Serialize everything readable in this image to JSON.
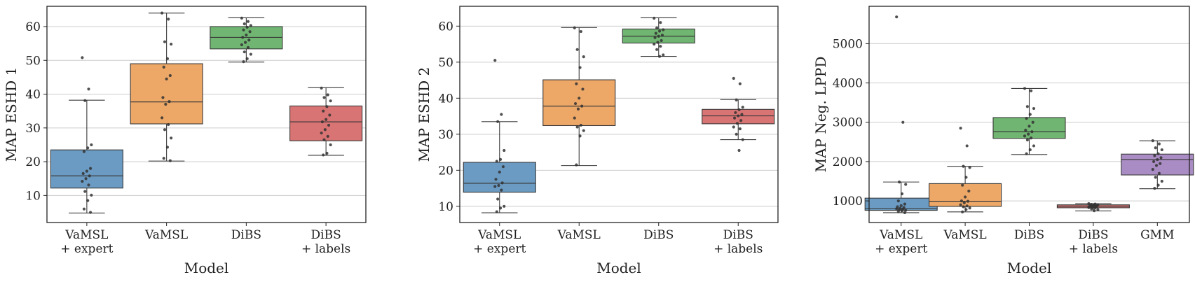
{
  "chart_data": [
    {
      "type": "box",
      "ylabel": "MAP ESHD 1",
      "xlabel": "Model",
      "ylim": [
        2,
        66
      ],
      "yticks": [
        10,
        20,
        30,
        40,
        50,
        60
      ],
      "grid": "horizontal",
      "boxes": [
        {
          "label": [
            "VaMSL",
            "+ expert"
          ],
          "color": "#6b9bc3",
          "q1": 12.2,
          "median": 15.8,
          "q3": 23.5,
          "whisker_low": 4.8,
          "whisker_high": 38.2,
          "points": [
            50.8,
            41.5,
            38.1,
            25.0,
            24.1,
            23.0,
            18.0,
            17.2,
            16.5,
            15.8,
            15.0,
            14.2,
            13.1,
            11.2,
            10.1,
            8.5,
            6.0,
            5.0
          ]
        },
        {
          "label": [
            "VaMSL"
          ],
          "color": "#eda868",
          "q1": 31.2,
          "median": 37.7,
          "q3": 49.0,
          "whisker_low": 20.2,
          "whisker_high": 64.0,
          "points": [
            64.0,
            62.2,
            55.5,
            54.8,
            50.5,
            48.0,
            45.5,
            44.5,
            39.0,
            37.8,
            37.0,
            33.0,
            31.0,
            29.5,
            27.0,
            24.3,
            21.0,
            20.3
          ]
        },
        {
          "label": [
            "DiBS"
          ],
          "color": "#70b672",
          "q1": 53.4,
          "median": 56.8,
          "q3": 60.0,
          "whisker_low": 49.5,
          "whisker_high": 62.6,
          "points": [
            62.5,
            61.5,
            60.8,
            60.3,
            59.8,
            59.0,
            58.5,
            57.5,
            56.8,
            56.0,
            55.3,
            54.6,
            53.8,
            52.5,
            51.8,
            50.5,
            49.6
          ]
        },
        {
          "label": [
            "DiBS",
            "+ labels"
          ],
          "color": "#d97474",
          "q1": 26.2,
          "median": 31.8,
          "q3": 36.5,
          "whisker_low": 21.9,
          "whisker_high": 41.9,
          "points": [
            41.8,
            39.8,
            39.0,
            38.0,
            36.3,
            35.0,
            33.8,
            32.5,
            31.8,
            30.8,
            29.5,
            28.5,
            27.5,
            26.5,
            25.0,
            22.5,
            22.0
          ]
        }
      ]
    },
    {
      "type": "box",
      "ylabel": "MAP ESHD 2",
      "xlabel": "Model",
      "ylim": [
        5.5,
        65.5
      ],
      "yticks": [
        10,
        20,
        30,
        40,
        50,
        60
      ],
      "grid": "horizontal",
      "boxes": [
        {
          "label": [
            "VaMSL",
            "+ expert"
          ],
          "color": "#6b9bc3",
          "q1": 13.9,
          "median": 16.4,
          "q3": 22.2,
          "whisker_low": 8.2,
          "whisker_high": 33.5,
          "points": [
            50.5,
            35.5,
            33.5,
            25.5,
            23.0,
            22.5,
            21.0,
            19.5,
            17.5,
            16.5,
            15.8,
            15.5,
            14.5,
            12.0,
            10.0,
            9.5,
            8.5
          ]
        },
        {
          "label": [
            "VaMSL"
          ],
          "color": "#eda868",
          "q1": 32.4,
          "median": 37.8,
          "q3": 45.1,
          "whisker_low": 21.3,
          "whisker_high": 59.6,
          "points": [
            59.5,
            58.5,
            53.5,
            51.5,
            48.5,
            44.0,
            42.5,
            40.0,
            38.5,
            37.8,
            37.0,
            34.5,
            32.5,
            32.0,
            31.0,
            29.5,
            21.5
          ]
        },
        {
          "label": [
            "DiBS"
          ],
          "color": "#70b672",
          "q1": 55.3,
          "median": 57.2,
          "q3": 59.2,
          "whisker_low": 51.6,
          "whisker_high": 62.3,
          "points": [
            62.2,
            61.0,
            59.5,
            59.0,
            58.6,
            58.0,
            57.5,
            57.2,
            56.8,
            56.0,
            55.5,
            55.0,
            54.4,
            53.5,
            52.0,
            51.6
          ]
        },
        {
          "label": [
            "DiBS",
            "+ labels"
          ],
          "color": "#d97474",
          "q1": 32.9,
          "median": 35.1,
          "q3": 36.9,
          "whisker_low": 28.5,
          "whisker_high": 39.6,
          "points": [
            45.5,
            44.0,
            39.5,
            37.5,
            36.8,
            36.0,
            35.5,
            35.1,
            34.5,
            33.8,
            33.0,
            32.0,
            31.5,
            30.0,
            28.5,
            25.5
          ]
        }
      ]
    },
    {
      "type": "box",
      "ylabel": "MAP Neg. LPPD",
      "xlabel": "Model",
      "ylim": [
        450,
        5950
      ],
      "yticks": [
        1000,
        2000,
        3000,
        4000,
        5000
      ],
      "grid": "horizontal",
      "boxes": [
        {
          "label": [
            "VaMSL",
            "+ expert"
          ],
          "color": "#6b9bc3",
          "q1": 760,
          "median": 800,
          "q3": 1070,
          "whisker_low": 700,
          "whisker_high": 1480,
          "points": [
            5680,
            3000,
            1480,
            1420,
            1180,
            1000,
            920,
            880,
            850,
            830,
            810,
            800,
            790,
            780,
            760,
            750,
            730,
            700
          ]
        },
        {
          "label": [
            "VaMSL"
          ],
          "color": "#eda868",
          "q1": 860,
          "median": 990,
          "q3": 1440,
          "whisker_low": 720,
          "whisker_high": 1880,
          "points": [
            2850,
            2400,
            1880,
            1850,
            1600,
            1400,
            1250,
            1100,
            1000,
            990,
            950,
            900,
            870,
            850,
            820,
            780,
            720
          ]
        },
        {
          "label": [
            "DiBS"
          ],
          "color": "#70b672",
          "q1": 2590,
          "median": 2760,
          "q3": 3120,
          "whisker_low": 2180,
          "whisker_high": 3860,
          "points": [
            3860,
            3800,
            3400,
            3350,
            3200,
            3100,
            3000,
            2900,
            2800,
            2760,
            2700,
            2650,
            2600,
            2550,
            2400,
            2300,
            2200
          ]
        },
        {
          "label": [
            "DiBS",
            "+ labels"
          ],
          "color": "#d97474",
          "q1": 825,
          "median": 865,
          "q3": 900,
          "whisker_low": 745,
          "whisker_high": 930,
          "points": [
            930,
            920,
            910,
            900,
            890,
            880,
            870,
            865,
            860,
            850,
            840,
            830,
            820,
            800,
            780,
            750
          ]
        },
        {
          "label": [
            "GMM"
          ],
          "color": "#aa8cc4",
          "q1": 1660,
          "median": 2050,
          "q3": 2190,
          "whisker_low": 1310,
          "whisker_high": 2530,
          "points": [
            2530,
            2450,
            2350,
            2300,
            2200,
            2150,
            2100,
            2050,
            2000,
            1950,
            1900,
            1800,
            1700,
            1600,
            1500,
            1400,
            1320
          ]
        }
      ]
    }
  ]
}
